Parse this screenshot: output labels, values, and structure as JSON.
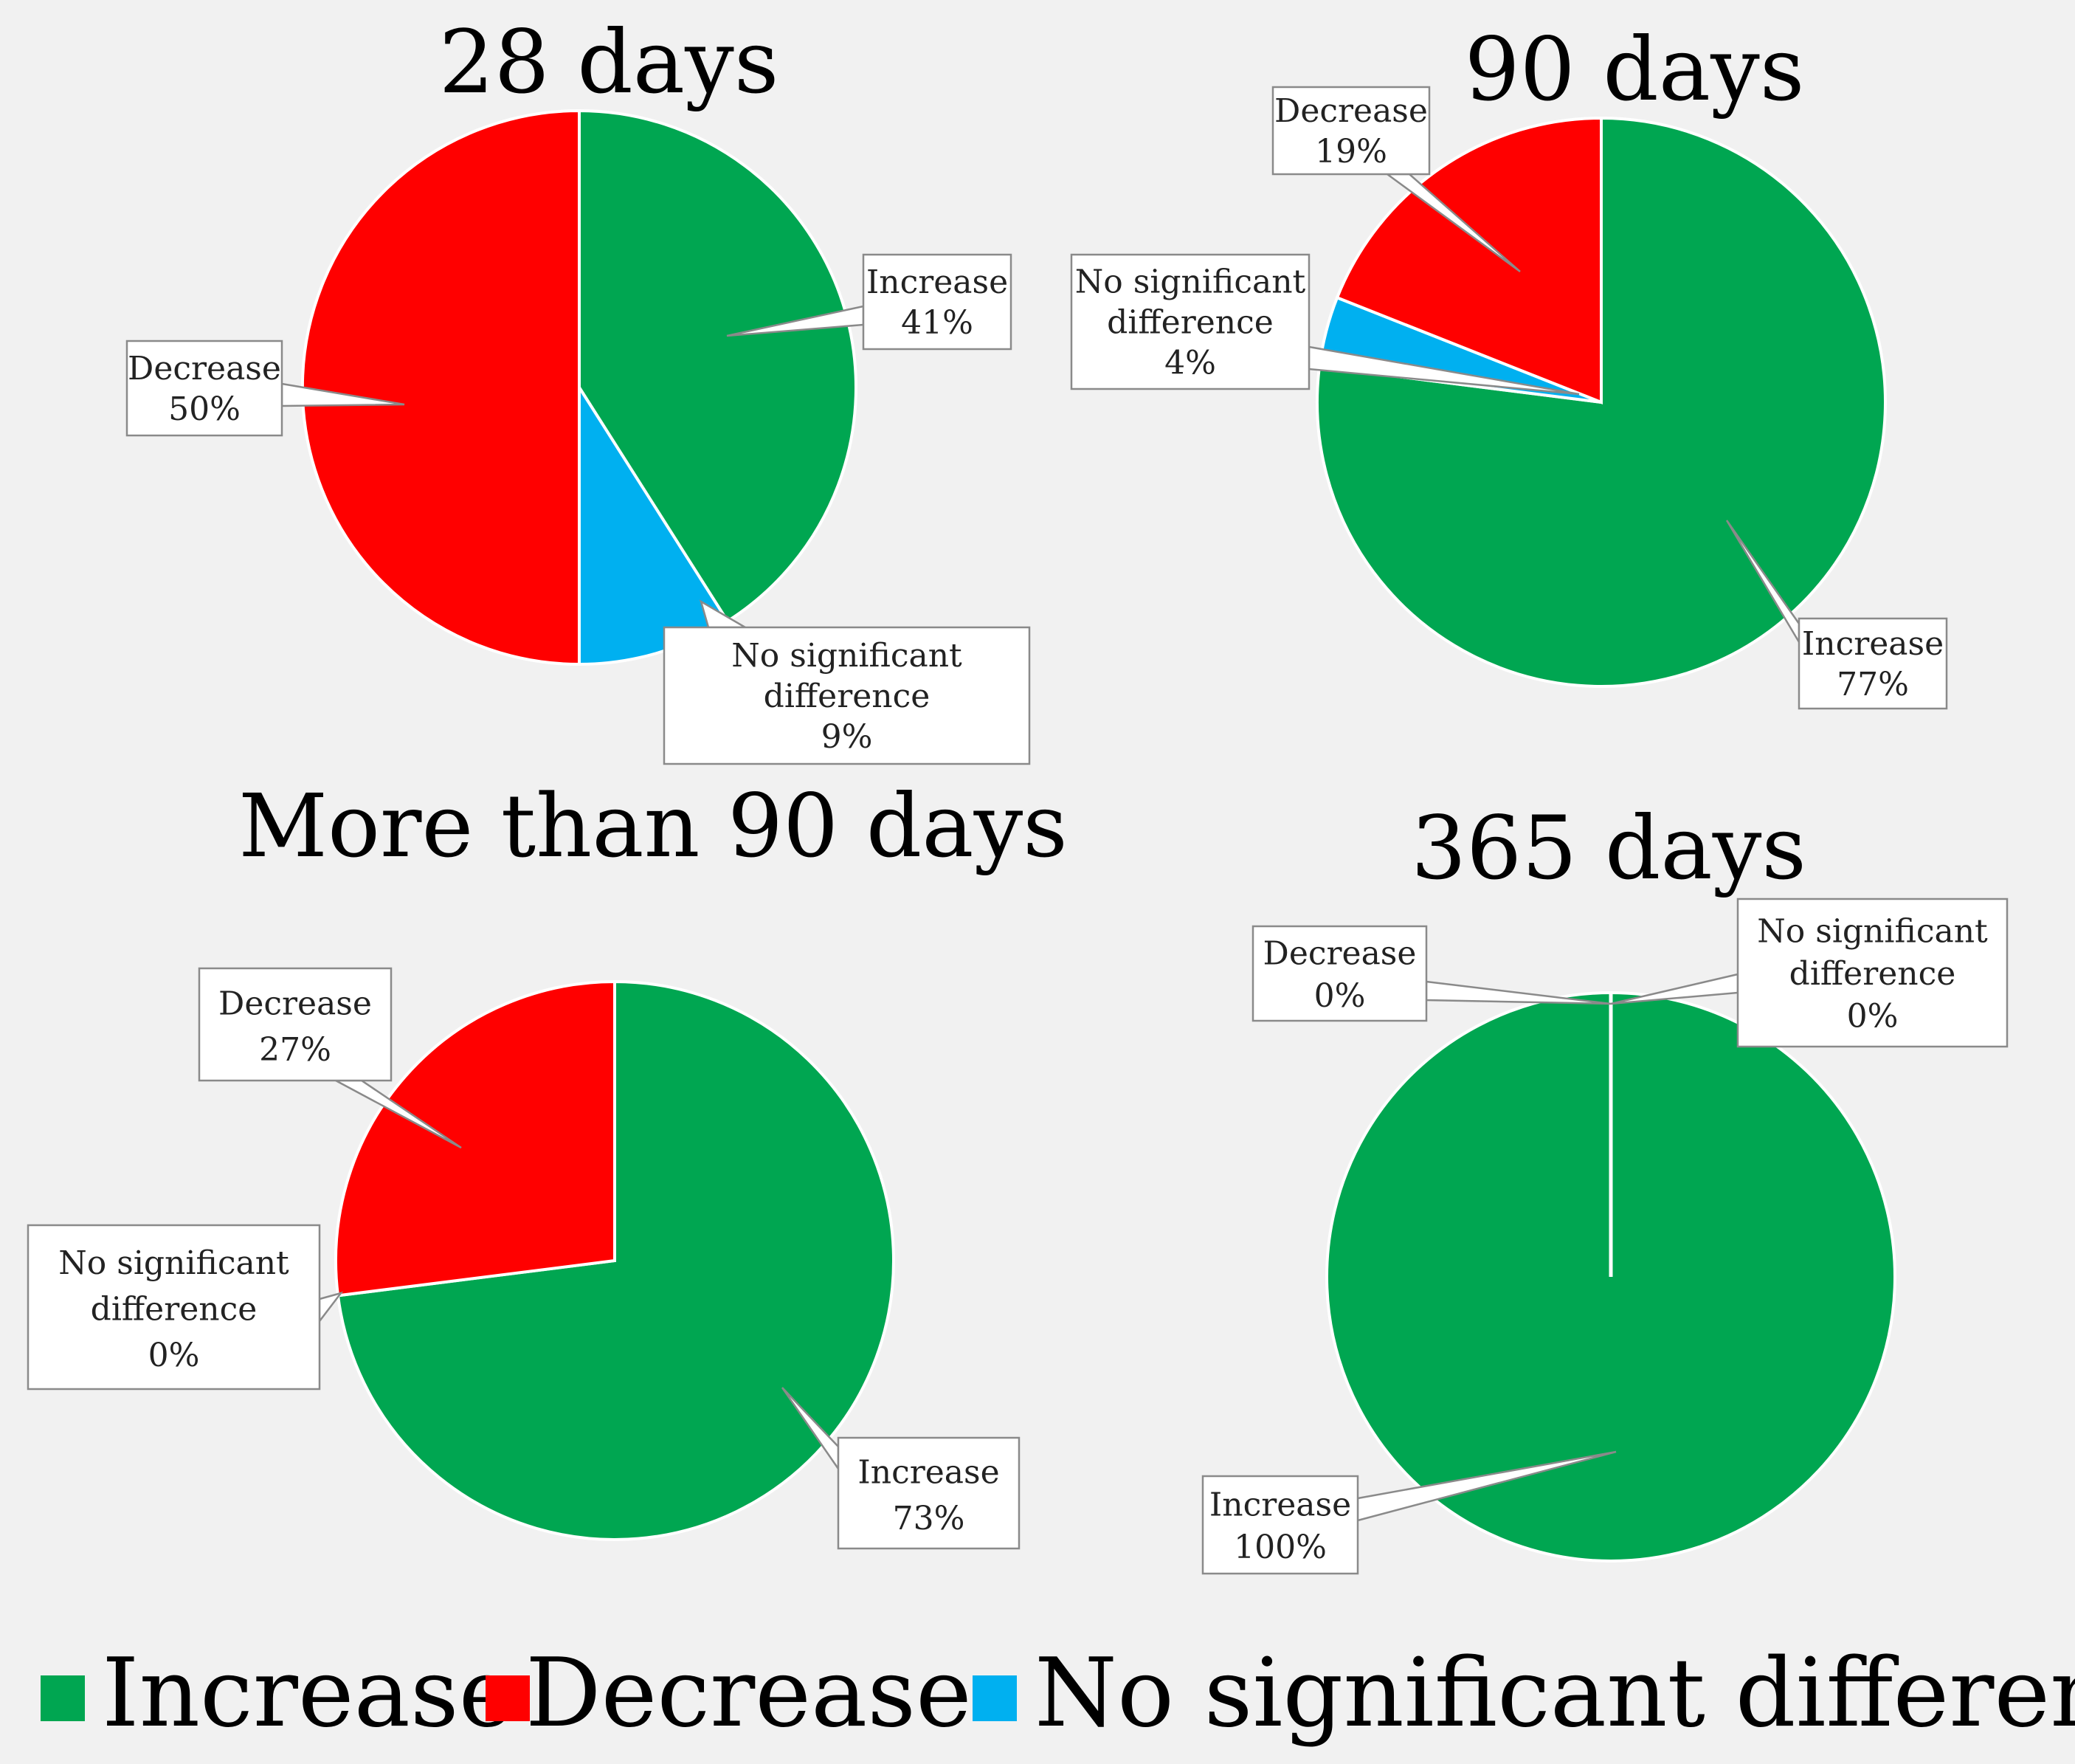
{
  "colors": {
    "increase": "#00a651",
    "decrease": "#ff0000",
    "no_significant_difference": "#00b0f0"
  },
  "legend": [
    {
      "key": "increase",
      "label": "Increase"
    },
    {
      "key": "decrease",
      "label": "Decrease"
    },
    {
      "key": "no_significant_difference",
      "label": "No significant difference"
    }
  ],
  "chart_data": [
    {
      "type": "pie",
      "title": "28 days",
      "slices": [
        {
          "key": "increase",
          "label": "Increase",
          "value": 41,
          "value_label": "41%"
        },
        {
          "key": "no_significant_difference",
          "label": "No significant difference",
          "value": 9,
          "value_label": "9%"
        },
        {
          "key": "decrease",
          "label": "Decrease",
          "value": 50,
          "value_label": "50%"
        }
      ]
    },
    {
      "type": "pie",
      "title": "90 days",
      "slices": [
        {
          "key": "increase",
          "label": "Increase",
          "value": 77,
          "value_label": "77%"
        },
        {
          "key": "no_significant_difference",
          "label": "No significant difference",
          "value": 4,
          "value_label": "4%"
        },
        {
          "key": "decrease",
          "label": "Decrease",
          "value": 19,
          "value_label": "19%"
        }
      ]
    },
    {
      "type": "pie",
      "title": "More than 90 days",
      "slices": [
        {
          "key": "increase",
          "label": "Increase",
          "value": 73,
          "value_label": "73%"
        },
        {
          "key": "no_significant_difference",
          "label": "No significant difference",
          "value": 0,
          "value_label": "0%"
        },
        {
          "key": "decrease",
          "label": "Decrease",
          "value": 27,
          "value_label": "27%"
        }
      ]
    },
    {
      "type": "pie",
      "title": "365 days",
      "slices": [
        {
          "key": "increase",
          "label": "Increase",
          "value": 100,
          "value_label": "100%"
        },
        {
          "key": "no_significant_difference",
          "label": "No significant difference",
          "value": 0,
          "value_label": "0%"
        },
        {
          "key": "decrease",
          "label": "Decrease",
          "value": 0,
          "value_label": "0%"
        }
      ]
    }
  ]
}
